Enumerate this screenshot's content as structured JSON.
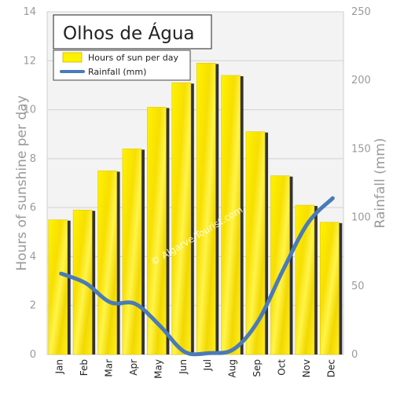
{
  "chart_data": {
    "type": "bar",
    "title": "Olhos de Água",
    "categories": [
      "Jan",
      "Feb",
      "Mar",
      "Apr",
      "May",
      "Jun",
      "Jul",
      "Aug",
      "Sep",
      "Oct",
      "Nov",
      "Dec"
    ],
    "series": [
      {
        "name": "Hours of sun per day",
        "axis": "left",
        "type": "bar",
        "values": [
          5.5,
          5.9,
          7.5,
          8.4,
          10.1,
          11.1,
          11.9,
          11.4,
          9.1,
          7.3,
          6.1,
          5.4
        ],
        "color": "#ffee00"
      },
      {
        "name": "Rainfall (mm)",
        "axis": "right",
        "type": "line",
        "values": [
          59,
          52,
          38,
          37,
          21,
          2,
          1,
          4,
          25,
          62,
          96,
          114
        ],
        "color": "#4a7ab7"
      }
    ],
    "ylabel": "Hours of sunshine per day",
    "ylabel_right": "Rainfall (mm)",
    "ylim": [
      0,
      14
    ],
    "ylim_right": [
      0,
      250
    ],
    "yticks": [
      "0",
      "2",
      "4",
      "6",
      "8",
      "10",
      "12",
      "14"
    ],
    "yticks_right": [
      "0",
      "50",
      "100",
      "150",
      "200",
      "250"
    ],
    "grid": true,
    "legend_placement": "top-left",
    "watermark": "© Algarve-Tourist.com"
  }
}
